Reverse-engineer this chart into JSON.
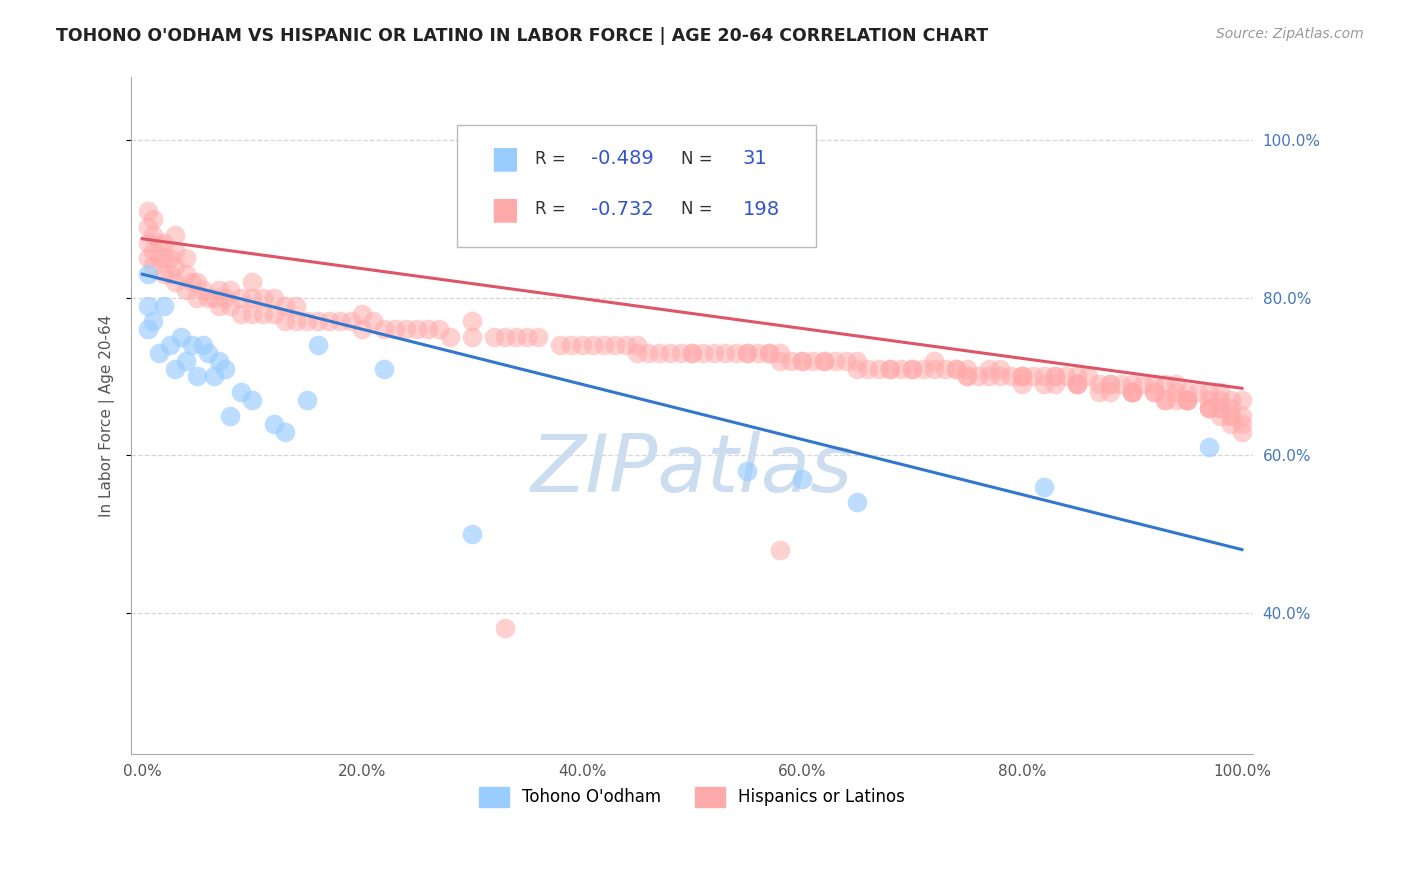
{
  "title": "TOHONO O'ODHAM VS HISPANIC OR LATINO IN LABOR FORCE | AGE 20-64 CORRELATION CHART",
  "source": "Source: ZipAtlas.com",
  "ylabel": "In Labor Force | Age 20-64",
  "watermark": "ZIPatlas",
  "xlim": [
    -0.01,
    1.01
  ],
  "ylim": [
    0.22,
    1.08
  ],
  "xtick_labels": [
    "0.0%",
    "20.0%",
    "40.0%",
    "60.0%",
    "80.0%",
    "100.0%"
  ],
  "xtick_values": [
    0.0,
    0.2,
    0.4,
    0.6,
    0.8,
    1.0
  ],
  "ytick_labels": [
    "40.0%",
    "60.0%",
    "80.0%",
    "100.0%"
  ],
  "ytick_values": [
    0.4,
    0.6,
    0.8,
    1.0
  ],
  "blue_color": "#99ccff",
  "pink_color": "#ffaaaa",
  "blue_line_color": "#3377cc",
  "pink_line_color": "#dd5566",
  "grid_color": "#cccccc",
  "title_color": "#222222",
  "source_color": "#999999",
  "watermark_color": "#ccddf0",
  "blue_scatter_x": [
    0.005,
    0.005,
    0.005,
    0.01,
    0.015,
    0.02,
    0.025,
    0.03,
    0.035,
    0.04,
    0.045,
    0.05,
    0.055,
    0.06,
    0.065,
    0.07,
    0.075,
    0.08,
    0.09,
    0.1,
    0.12,
    0.13,
    0.15,
    0.16,
    0.22,
    0.3,
    0.55,
    0.6,
    0.65,
    0.82,
    0.97
  ],
  "blue_scatter_y": [
    0.76,
    0.79,
    0.83,
    0.77,
    0.73,
    0.79,
    0.74,
    0.71,
    0.75,
    0.72,
    0.74,
    0.7,
    0.74,
    0.73,
    0.7,
    0.72,
    0.71,
    0.65,
    0.68,
    0.67,
    0.64,
    0.63,
    0.67,
    0.74,
    0.71,
    0.5,
    0.58,
    0.57,
    0.54,
    0.56,
    0.61
  ],
  "blue_line_x": [
    0.0,
    1.0
  ],
  "blue_line_y": [
    0.83,
    0.48
  ],
  "pink_scatter_x": [
    0.005,
    0.005,
    0.005,
    0.005,
    0.01,
    0.01,
    0.01,
    0.01,
    0.015,
    0.015,
    0.02,
    0.02,
    0.02,
    0.025,
    0.025,
    0.03,
    0.03,
    0.03,
    0.03,
    0.04,
    0.04,
    0.04,
    0.045,
    0.05,
    0.05,
    0.055,
    0.06,
    0.065,
    0.07,
    0.07,
    0.075,
    0.08,
    0.08,
    0.09,
    0.09,
    0.1,
    0.1,
    0.1,
    0.11,
    0.11,
    0.12,
    0.12,
    0.13,
    0.13,
    0.14,
    0.14,
    0.15,
    0.16,
    0.17,
    0.18,
    0.19,
    0.2,
    0.2,
    0.21,
    0.22,
    0.23,
    0.24,
    0.25,
    0.26,
    0.27,
    0.28,
    0.3,
    0.3,
    0.32,
    0.33,
    0.34,
    0.35,
    0.36,
    0.38,
    0.39,
    0.4,
    0.41,
    0.42,
    0.43,
    0.44,
    0.45,
    0.46,
    0.47,
    0.48,
    0.49,
    0.5,
    0.51,
    0.52,
    0.53,
    0.54,
    0.55,
    0.56,
    0.57,
    0.58,
    0.59,
    0.6,
    0.61,
    0.62,
    0.63,
    0.64,
    0.65,
    0.66,
    0.67,
    0.68,
    0.69,
    0.7,
    0.71,
    0.72,
    0.73,
    0.74,
    0.75,
    0.76,
    0.77,
    0.78,
    0.79,
    0.8,
    0.81,
    0.82,
    0.83,
    0.84,
    0.85,
    0.86,
    0.87,
    0.88,
    0.89,
    0.9,
    0.91,
    0.92,
    0.93,
    0.94,
    0.95,
    0.96,
    0.97,
    0.98,
    0.99,
    1.0,
    0.45,
    0.5,
    0.55,
    0.57,
    0.58,
    0.72,
    0.74,
    0.75,
    0.77,
    0.78,
    0.8,
    0.83,
    0.85,
    0.88,
    0.9,
    0.92,
    0.94,
    0.95,
    0.97,
    0.98,
    0.99,
    0.6,
    0.62,
    0.65,
    0.68,
    0.7,
    0.75,
    0.8,
    0.82,
    0.85,
    0.88,
    0.9,
    0.92,
    0.94,
    0.95,
    0.97,
    0.98,
    0.99,
    1.0,
    0.8,
    0.83,
    0.85,
    0.87,
    0.9,
    0.93,
    0.95,
    0.97,
    0.98,
    0.99,
    1.0,
    0.9,
    0.93,
    0.95,
    0.97,
    0.98,
    0.99,
    1.0,
    0.58,
    0.33
  ],
  "pink_scatter_y": [
    0.85,
    0.87,
    0.89,
    0.91,
    0.84,
    0.86,
    0.88,
    0.9,
    0.85,
    0.87,
    0.83,
    0.85,
    0.87,
    0.83,
    0.85,
    0.82,
    0.84,
    0.86,
    0.88,
    0.81,
    0.83,
    0.85,
    0.82,
    0.8,
    0.82,
    0.81,
    0.8,
    0.8,
    0.79,
    0.81,
    0.8,
    0.79,
    0.81,
    0.78,
    0.8,
    0.78,
    0.8,
    0.82,
    0.78,
    0.8,
    0.78,
    0.8,
    0.77,
    0.79,
    0.77,
    0.79,
    0.77,
    0.77,
    0.77,
    0.77,
    0.77,
    0.76,
    0.78,
    0.77,
    0.76,
    0.76,
    0.76,
    0.76,
    0.76,
    0.76,
    0.75,
    0.75,
    0.77,
    0.75,
    0.75,
    0.75,
    0.75,
    0.75,
    0.74,
    0.74,
    0.74,
    0.74,
    0.74,
    0.74,
    0.74,
    0.74,
    0.73,
    0.73,
    0.73,
    0.73,
    0.73,
    0.73,
    0.73,
    0.73,
    0.73,
    0.73,
    0.73,
    0.73,
    0.72,
    0.72,
    0.72,
    0.72,
    0.72,
    0.72,
    0.72,
    0.72,
    0.71,
    0.71,
    0.71,
    0.71,
    0.71,
    0.71,
    0.71,
    0.71,
    0.71,
    0.7,
    0.7,
    0.7,
    0.7,
    0.7,
    0.7,
    0.7,
    0.7,
    0.7,
    0.7,
    0.7,
    0.7,
    0.69,
    0.69,
    0.69,
    0.69,
    0.69,
    0.69,
    0.69,
    0.69,
    0.68,
    0.68,
    0.68,
    0.68,
    0.67,
    0.67,
    0.73,
    0.73,
    0.73,
    0.73,
    0.73,
    0.72,
    0.71,
    0.71,
    0.71,
    0.71,
    0.7,
    0.7,
    0.69,
    0.69,
    0.68,
    0.68,
    0.68,
    0.67,
    0.67,
    0.67,
    0.66,
    0.72,
    0.72,
    0.71,
    0.71,
    0.71,
    0.7,
    0.69,
    0.69,
    0.69,
    0.68,
    0.68,
    0.68,
    0.67,
    0.67,
    0.66,
    0.66,
    0.65,
    0.64,
    0.7,
    0.69,
    0.69,
    0.68,
    0.68,
    0.67,
    0.67,
    0.66,
    0.66,
    0.65,
    0.65,
    0.68,
    0.67,
    0.67,
    0.66,
    0.65,
    0.64,
    0.63,
    0.48,
    0.38
  ],
  "pink_line_x": [
    0.0,
    1.0
  ],
  "pink_line_y": [
    0.875,
    0.685
  ]
}
